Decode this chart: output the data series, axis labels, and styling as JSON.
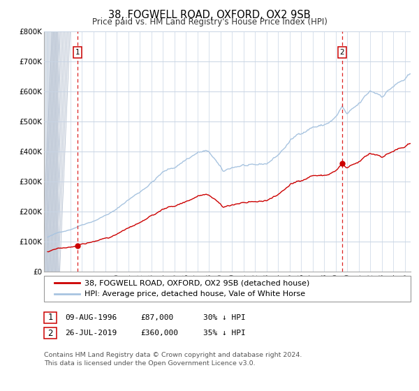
{
  "title": "38, FOGWELL ROAD, OXFORD, OX2 9SB",
  "subtitle": "Price paid vs. HM Land Registry's House Price Index (HPI)",
  "ylim": [
    0,
    800000
  ],
  "yticks": [
    0,
    100000,
    200000,
    300000,
    400000,
    500000,
    600000,
    700000,
    800000
  ],
  "ytick_labels": [
    "£0",
    "£100K",
    "£200K",
    "£300K",
    "£400K",
    "£500K",
    "£600K",
    "£700K",
    "£800K"
  ],
  "xlim_start": 1993.7,
  "xlim_end": 2025.5,
  "hpi_color": "#a8c4e0",
  "price_color": "#cc0000",
  "vline_color": "#dd2222",
  "marker_color": "#cc0000",
  "sale1_x": 1996.6,
  "sale1_y": 87000,
  "sale2_x": 2019.55,
  "sale2_y": 360000,
  "legend_price_label": "38, FOGWELL ROAD, OXFORD, OX2 9SB (detached house)",
  "legend_hpi_label": "HPI: Average price, detached house, Vale of White Horse",
  "sale1_date": "09-AUG-1996",
  "sale1_price": "£87,000",
  "sale1_hpi": "30% ↓ HPI",
  "sale2_date": "26-JUL-2019",
  "sale2_price": "£360,000",
  "sale2_hpi": "35% ↓ HPI",
  "footer_line1": "Contains HM Land Registry data © Crown copyright and database right 2024.",
  "footer_line2": "This data is licensed under the Open Government Licence v3.0."
}
